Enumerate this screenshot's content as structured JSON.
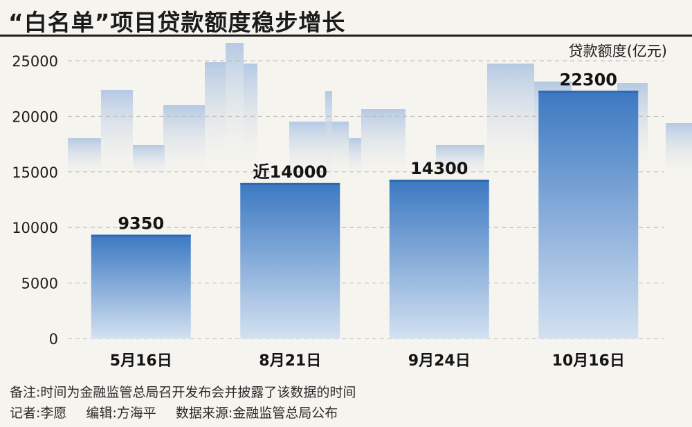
{
  "title": "“白名单”项目贷款额度稳步增长",
  "unit_label": "贷款额度(亿元)",
  "note": "备注:时间为金融监管总局召开发布会并披露了该数据的时间",
  "credits": {
    "reporter": "记者:李愿",
    "editor": "编辑:方海平",
    "source": "数据来源:金融监管总局公布"
  },
  "chart_data": {
    "type": "bar",
    "categories": [
      "5月16日",
      "8月21日",
      "9月24日",
      "10月16日"
    ],
    "values": [
      9350,
      14000,
      14300,
      22300
    ],
    "data_labels": [
      "9350",
      "近14000",
      "14300",
      "22300"
    ],
    "ylabel": "贷款额度(亿元)",
    "ylim": [
      0,
      25000
    ],
    "yticks": [
      0,
      5000,
      10000,
      15000,
      20000,
      25000
    ],
    "grid": true,
    "bar_color": "#3f7cc4"
  }
}
